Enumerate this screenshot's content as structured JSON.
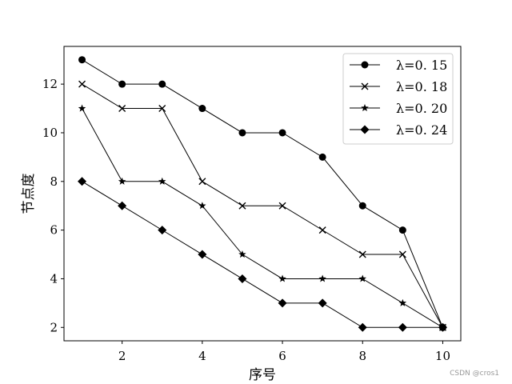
{
  "chart_data": {
    "type": "line",
    "xlabel": "序号",
    "ylabel": "节点度",
    "xlim": [
      0.55,
      10.45
    ],
    "ylim": [
      1.45,
      13.55
    ],
    "xticks": [
      2,
      4,
      6,
      8,
      10
    ],
    "yticks": [
      2,
      4,
      6,
      8,
      10,
      12
    ],
    "legend_position": "upper right",
    "grid": false,
    "x": [
      1,
      2,
      3,
      4,
      5,
      6,
      7,
      8,
      9,
      10
    ],
    "series": [
      {
        "name": "λ=0. 15",
        "marker": "circle",
        "color": "#000000",
        "values": [
          13,
          12,
          12,
          11,
          10,
          10,
          9,
          7,
          6,
          2
        ]
      },
      {
        "name": "λ=0. 18",
        "marker": "x",
        "color": "#000000",
        "values": [
          12,
          11,
          11,
          8,
          7,
          7,
          6,
          5,
          5,
          2
        ]
      },
      {
        "name": "λ=0. 20",
        "marker": "star",
        "color": "#000000",
        "values": [
          11,
          8,
          8,
          7,
          5,
          4,
          4,
          4,
          3,
          2
        ]
      },
      {
        "name": "λ=0. 24",
        "marker": "diamond",
        "color": "#000000",
        "values": [
          8,
          7,
          6,
          5,
          4,
          3,
          3,
          2,
          2,
          2
        ]
      }
    ]
  },
  "watermark": "CSDN @cros1"
}
